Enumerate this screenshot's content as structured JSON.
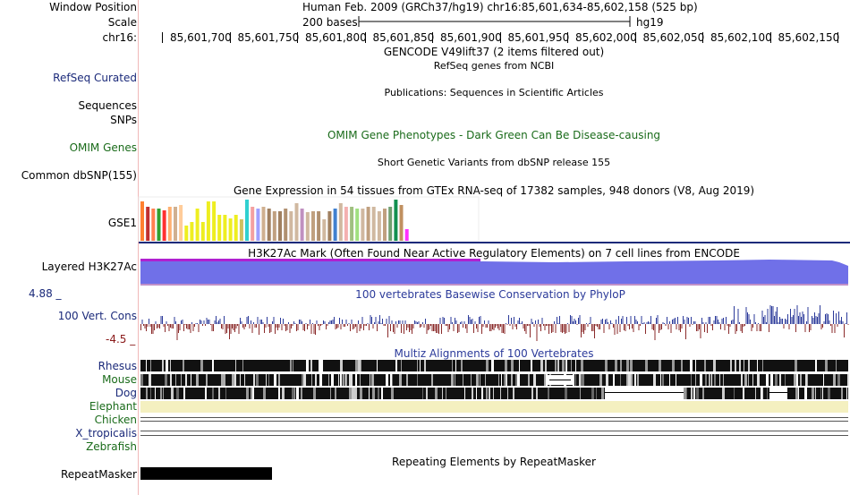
{
  "header": {
    "window_position_label": "Window Position",
    "window_position_value": "Human Feb. 2009 (GRCh37/hg19)   chr16:85,601,634-85,602,158 (525 bp)",
    "scale_label": "Scale",
    "scale_bases": "200 bases",
    "scale_assembly": "hg19",
    "chrom_label": "chr16:",
    "ruler_ticks": [
      "85,601,700",
      "85,601,750",
      "85,601,800",
      "85,601,850",
      "85,601,900",
      "85,601,950",
      "85,602,000",
      "85,602,050",
      "85,602,100",
      "85,602,150"
    ]
  },
  "tracks": {
    "gencode": {
      "title": "GENCODE V49lift37 (2 items filtered out)"
    },
    "refseq": {
      "label": "RefSeq Curated",
      "title": "RefSeq genes from NCBI"
    },
    "publications": {
      "label": "Sequences",
      "title": "Publications: Sequences in Scientific Articles"
    },
    "snps": {
      "label": "SNPs"
    },
    "omim": {
      "label": "OMIM Genes",
      "title": "OMIM Gene Phenotypes - Dark Green Can Be Disease-causing"
    },
    "dbsnp": {
      "label": "Common dbSNP(155)",
      "title": "Short Genetic Variants from dbSNP release 155"
    },
    "gtex": {
      "label": "GSE1",
      "title": "Gene Expression in 54 tissues from GTEx RNA-seq of 17382 samples, 948 donors (V8, Aug 2019)",
      "bar_levels": [
        0.95,
        0.82,
        0.78,
        0.78,
        0.74,
        0.82,
        0.82,
        0.88,
        0.38,
        0.45,
        0.78,
        0.45,
        0.95,
        0.95,
        0.62,
        0.62,
        0.55,
        0.62,
        0.52,
        1.0,
        0.82,
        0.78,
        0.82,
        0.78,
        0.72,
        0.72,
        0.78,
        0.72,
        0.92,
        0.78,
        0.7,
        0.72,
        0.72,
        0.52,
        0.72,
        0.78,
        0.92,
        0.82,
        0.82,
        0.78,
        0.78,
        0.82,
        0.82,
        0.72,
        0.78,
        0.82,
        1.0,
        0.88,
        0.28
      ],
      "bar_colors": [
        "#ff8030",
        "#c03030",
        "#ff8050",
        "#30a030",
        "#ff3030",
        "#ffb070",
        "#d0b090",
        "#ffcc99",
        "#eeee20",
        "#eeee20",
        "#eeee20",
        "#eeee20",
        "#eeee20",
        "#eeee20",
        "#eeee20",
        "#eeee20",
        "#eeee20",
        "#eeee20",
        "#d0c060",
        "#30d0d0",
        "#f4a0a0",
        "#a0a0ff",
        "#d0b090",
        "#a08060",
        "#c0a080",
        "#a08060",
        "#b09070",
        "#d0b8a0",
        "#d0b8a0",
        "#c090c0",
        "#d0b8a0",
        "#c0a080",
        "#b09070",
        "#d0b8a0",
        "#a08060",
        "#4080d0",
        "#d0b8a0",
        "#f4b0b0",
        "#a0c080",
        "#a0e080",
        "#d0b8a0",
        "#c0a080",
        "#d0b8a0",
        "#d0b8a0",
        "#c0a080",
        "#70a070",
        "#109050",
        "#c09060",
        "#ff30ff"
      ]
    },
    "h3k27ac": {
      "label": "Layered H3K27Ac",
      "title": "H3K27Ac Mark (Often Found Near Active Regulatory Elements) on 7 cell lines from ENCODE"
    },
    "phylop": {
      "label": "100 Vert. Cons",
      "max": "4.88 _",
      "min": "-4.5 _",
      "title": "100 vertebrates Basewise Conservation by PhyloP"
    },
    "multiz": {
      "title": "Multiz Alignments of 100 Vertebrates",
      "species": [
        "Rhesus",
        "Mouse",
        "Dog",
        "Elephant",
        "Chicken",
        "X_tropicalis",
        "Zebrafish"
      ]
    },
    "repeatmasker": {
      "label": "RepeatMasker",
      "title": "Repeating Elements by RepeatMasker"
    }
  },
  "colors": {
    "accent_navy": "#1b2a7a",
    "omim_green": "#1a6b1a",
    "h3k27ac_fill": "#7070e8",
    "phylop_pos": "#2b3a9a",
    "phylop_neg": "#8a2a2a",
    "elephant_fill": "#f4f0c0"
  }
}
